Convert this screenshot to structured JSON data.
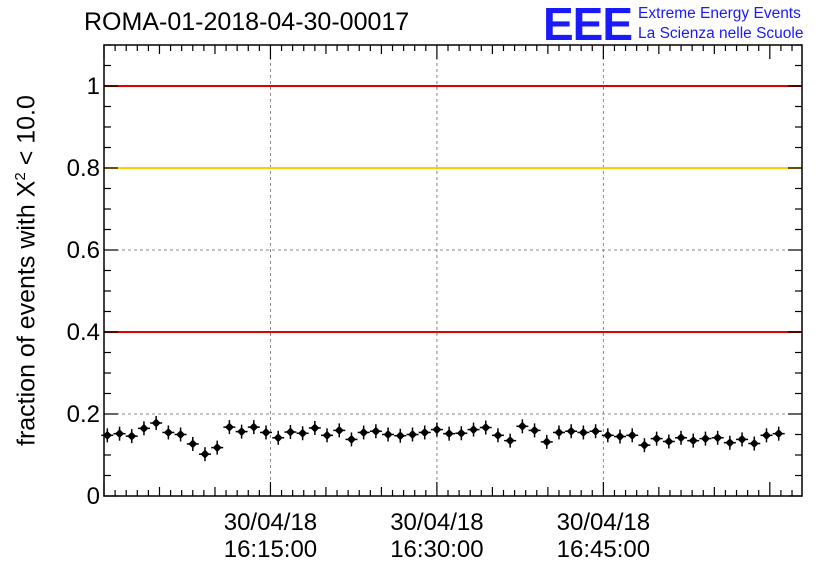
{
  "title": "ROMA-01-2018-04-30-00017",
  "logo": {
    "mark": "EEE",
    "line1": "Extreme Energy Events",
    "line2": "La Scienza nelle Scuole"
  },
  "colors": {
    "red_line": "#e00000",
    "yellow_line": "#ffcc00",
    "brand": "#1a1aff",
    "marker": "#000000",
    "grid": "#888888"
  },
  "chart_data": {
    "type": "scatter",
    "title": "ROMA-01-2018-04-30-00017",
    "ylabel_prefix": "fraction of events with X",
    "ylabel_sup": "2",
    "ylabel_suffix": " < 10.0",
    "ylim": [
      0,
      1.1
    ],
    "yticks": [
      0,
      0.2,
      0.4,
      0.6,
      0.8,
      1
    ],
    "ytick_labels": [
      "0",
      "0.2",
      "0.4",
      "0.6",
      "0.8",
      "1"
    ],
    "xlim_minutes": [
      0,
      62.9
    ],
    "xticks": [
      {
        "minute": 15,
        "date": "30/04/18",
        "time": "16:15:00"
      },
      {
        "minute": 30,
        "date": "30/04/18",
        "time": "16:30:00"
      },
      {
        "minute": 45,
        "date": "30/04/18",
        "time": "16:45:00"
      }
    ],
    "grid": true,
    "reference_lines": [
      {
        "y": 1.0,
        "color": "red"
      },
      {
        "y": 0.8,
        "color": "yellow"
      },
      {
        "y": 0.4,
        "color": "red"
      }
    ],
    "series": [
      {
        "x_minutes": [
          0.3,
          1.4,
          2.5,
          3.6,
          4.7,
          5.8,
          6.9,
          8.0,
          9.1,
          10.2,
          11.3,
          12.4,
          13.5,
          14.6,
          15.7,
          16.8,
          17.9,
          19.0,
          20.1,
          21.2,
          22.3,
          23.4,
          24.5,
          25.6,
          26.7,
          27.8,
          28.9,
          30.0,
          31.1,
          32.2,
          33.3,
          34.4,
          35.5,
          36.6,
          37.7,
          38.8,
          39.9,
          41.0,
          42.1,
          43.2,
          44.3,
          45.4,
          46.5,
          47.6,
          48.7,
          49.8,
          50.9,
          52.0,
          53.1,
          54.2,
          55.3,
          56.4,
          57.5,
          58.6,
          59.7,
          60.8
        ],
        "y": [
          0.148,
          0.152,
          0.146,
          0.165,
          0.178,
          0.155,
          0.15,
          0.127,
          0.102,
          0.118,
          0.168,
          0.157,
          0.168,
          0.155,
          0.142,
          0.156,
          0.153,
          0.166,
          0.148,
          0.16,
          0.138,
          0.155,
          0.158,
          0.15,
          0.147,
          0.15,
          0.155,
          0.162,
          0.152,
          0.153,
          0.162,
          0.167,
          0.148,
          0.135,
          0.17,
          0.16,
          0.132,
          0.155,
          0.158,
          0.155,
          0.158,
          0.148,
          0.145,
          0.148,
          0.124,
          0.14,
          0.133,
          0.142,
          0.135,
          0.14,
          0.142,
          0.13,
          0.138,
          0.128,
          0.148,
          0.152
        ]
      }
    ]
  }
}
